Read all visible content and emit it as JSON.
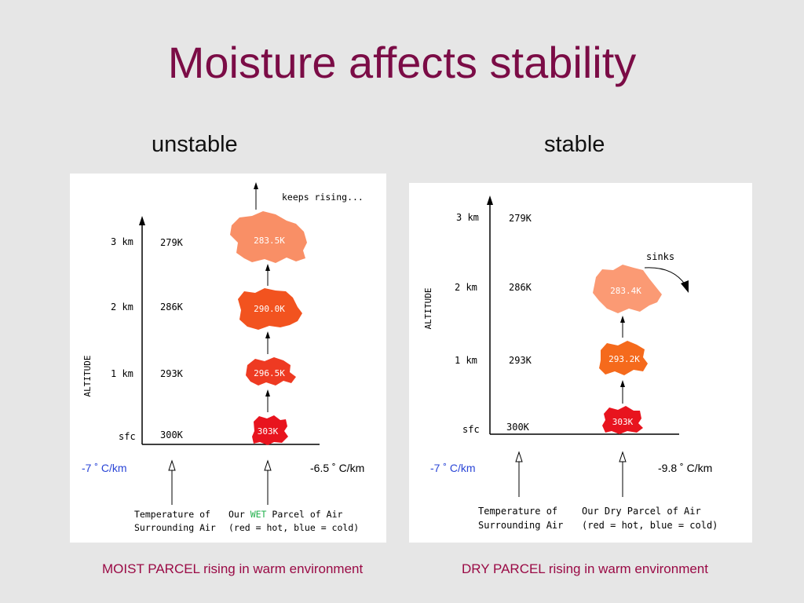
{
  "title": "Moisture affects stability",
  "left": {
    "heading": "unstable",
    "axis_label": "ALTITUDE",
    "levels": [
      {
        "alt": "sfc",
        "temp": "300K",
        "parcel": "303K",
        "color": "#e8141e"
      },
      {
        "alt": "1 km",
        "temp": "293K",
        "parcel": "296.5K",
        "color": "#ee3a22"
      },
      {
        "alt": "2 km",
        "temp": "286K",
        "parcel": "290.0K",
        "color": "#f2531f"
      },
      {
        "alt": "3 km",
        "temp": "279K",
        "parcel": "283.5K",
        "color": "#f98f66"
      }
    ],
    "top_note": "keeps rising...",
    "env_lapse": "-7 ˚ C/km",
    "parcel_lapse": "-6.5 ˚ C/km",
    "env_label_line1": "Temperature of",
    "env_label_line2": "Surrounding Air",
    "parcel_label_pre": "Our ",
    "parcel_label_word": "WET",
    "parcel_label_post": " Parcel of Air",
    "parcel_label_line2": "(red = hot, blue = cold)",
    "wet_color": "#22b14c",
    "caption": "MOIST PARCEL rising in warm environment"
  },
  "right": {
    "heading": "stable",
    "axis_label": "ALTITUDE",
    "levels": [
      {
        "alt": "sfc",
        "temp": "300K",
        "parcel": "303K",
        "color": "#e8141e"
      },
      {
        "alt": "1 km",
        "temp": "293K",
        "parcel": "293.2K",
        "color": "#f56a1c"
      },
      {
        "alt": "2 km",
        "temp": "286K",
        "parcel": "283.4K",
        "color": "#fb9a74"
      },
      {
        "alt": "3 km",
        "temp": "279K"
      }
    ],
    "side_note": "sinks",
    "env_lapse": "-7 ˚ C/km",
    "parcel_lapse": "-9.8 ˚ C/km",
    "env_label_line1": "Temperature of",
    "env_label_line2": "Surrounding Air",
    "parcel_label_line1": "Our Dry Parcel of Air",
    "parcel_label_line2": "(red = hot, blue = cold)",
    "caption": "DRY PARCEL rising in warm environment"
  }
}
